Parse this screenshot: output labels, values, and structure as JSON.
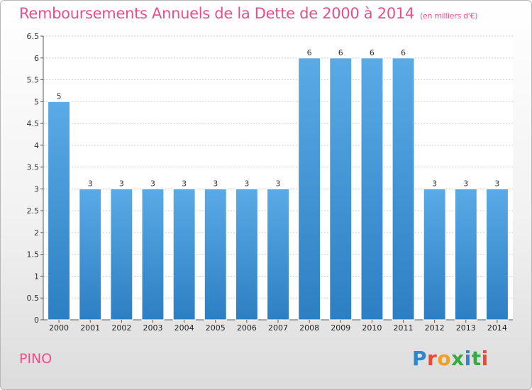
{
  "title": "Remboursements Annuels de la Dette de 2000 à 2014",
  "unit": "(en milliers d'€)",
  "commune": "PINO",
  "brand": "Proxiti",
  "colors": {
    "title": "#e5508a",
    "bar_top": "#5aaae6",
    "bar_bottom": "#2c7fc2",
    "brand_letters": [
      "#2f86c9",
      "#e84b3c",
      "#f0a020",
      "#39a845",
      "#2f86c9",
      "#39a845",
      "#e84b3c"
    ]
  },
  "chart_data": {
    "type": "bar",
    "categories": [
      "2000",
      "2001",
      "2002",
      "2003",
      "2004",
      "2005",
      "2006",
      "2007",
      "2008",
      "2009",
      "2010",
      "2011",
      "2012",
      "2013",
      "2014"
    ],
    "values": [
      5,
      3,
      3,
      3,
      3,
      3,
      3,
      3,
      6,
      6,
      6,
      6,
      3,
      3,
      3
    ],
    "data_labels": [
      "5",
      "3",
      "3",
      "3",
      "3",
      "3",
      "3",
      "3",
      "6",
      "6",
      "6",
      "6",
      "3",
      "3",
      "3"
    ],
    "ylim": [
      0,
      6.5
    ],
    "yticks": [
      "0",
      "0.5",
      "1",
      "1.5",
      "2",
      "2.5",
      "3",
      "3.5",
      "4",
      "4.5",
      "5",
      "5.5",
      "6",
      "6.5"
    ],
    "grid": true,
    "xlabel": "",
    "ylabel": ""
  }
}
